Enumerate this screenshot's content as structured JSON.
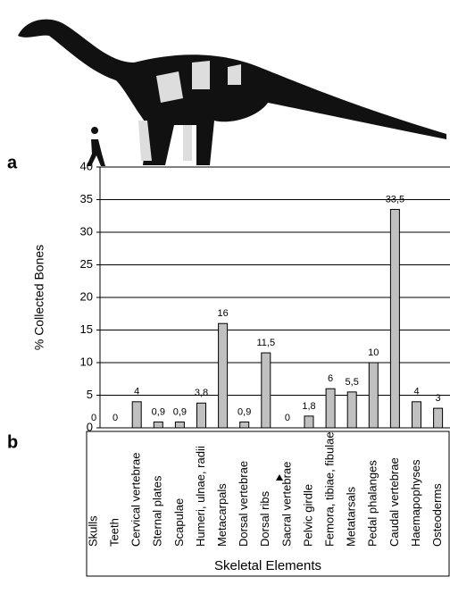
{
  "chart_data": {
    "type": "bar",
    "annotations": [
      "a",
      "b"
    ],
    "y_label": "% Collected Bones",
    "x_label": "Skeletal Elements",
    "categories": [
      "Skulls",
      "Teeth",
      "Cervical vertebrae",
      "Sternal plates",
      "Scapulae",
      "Humeri, ulnae, radii",
      "Metacarpals",
      "Dorsal vertebrae",
      "Dorsal ribs",
      "Sacral vertebrae",
      "Pelvic girdle",
      "Femora, tibiae, fibulae",
      "Metatarsals",
      "Pedal phalanges",
      "Caudal vertebrae",
      "Haemapophyses",
      "Osteoderms"
    ],
    "values": [
      0,
      0,
      4,
      0.9,
      0.9,
      3.8,
      16,
      0.9,
      11.5,
      0,
      1.8,
      6,
      5.5,
      10,
      33.5,
      4,
      3
    ],
    "value_labels": [
      "0",
      "0",
      "4",
      "0,9",
      "0,9",
      "3,8",
      "16",
      "0,9",
      "11,5",
      "0",
      "1,8",
      "6",
      "5,5",
      "10",
      "33,5",
      "4",
      "3"
    ],
    "color": "#c0c0c0",
    "ylim": [
      0,
      40
    ],
    "yticks": [
      0,
      5,
      10,
      15,
      20,
      25,
      30,
      35,
      40
    ],
    "grid": true
  }
}
